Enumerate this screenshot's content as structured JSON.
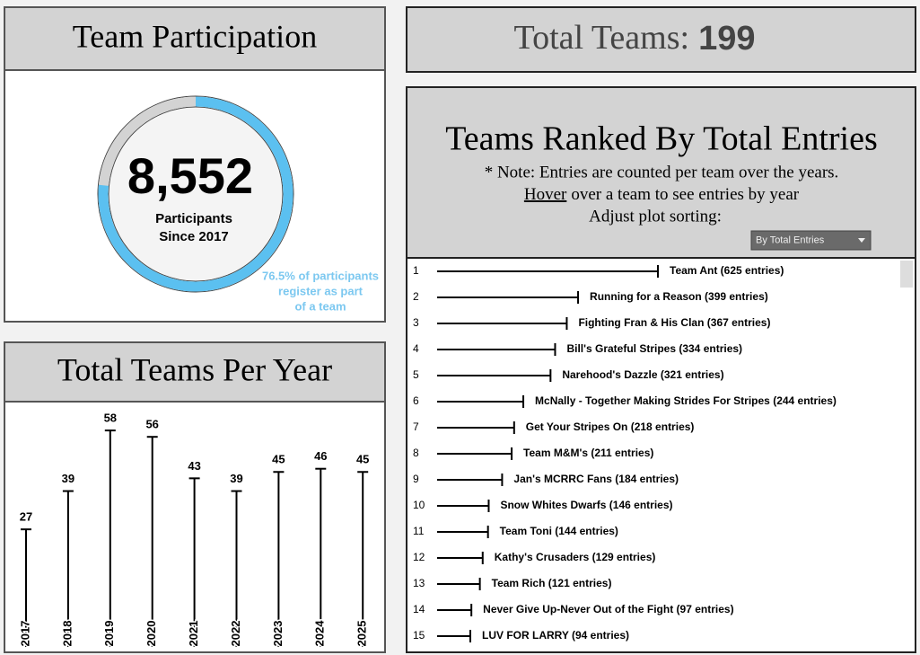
{
  "chart_data": [
    {
      "type": "donut",
      "title": "Team Participation",
      "value": 76.5,
      "colors": [
        "#5bc0f0",
        "#d3d3d3"
      ],
      "center_label": "8,552",
      "center_caption": [
        "Participants",
        "Since 2017"
      ],
      "annotation": [
        "76.5% of participants",
        "register as part",
        "of a team"
      ],
      "annotation_color": "#7cc8f0"
    },
    {
      "type": "lollipop",
      "title": "Total Teams Per Year",
      "categories": [
        "2017",
        "2018",
        "2019",
        "2020",
        "2021",
        "2022",
        "2023",
        "2024",
        "2025"
      ],
      "values": [
        27,
        39,
        58,
        56,
        43,
        39,
        45,
        46,
        45
      ],
      "color": "#000000"
    },
    {
      "type": "kpi",
      "label": "Total Teams:",
      "value": 199
    },
    {
      "type": "ranked",
      "title": "Teams Ranked By Total Entries",
      "note": "* Note: Entries are counted per team over the years.",
      "hover": "Hover",
      "hover_rest": "over a team to see entries by year",
      "sort_label": "Adjust plot sorting:",
      "sort_option": "By Total Entries",
      "ranks": [
        1,
        2,
        3,
        4,
        5,
        6,
        7,
        8,
        9,
        10,
        11,
        12,
        13,
        14,
        15
      ],
      "values": [
        625,
        399,
        367,
        334,
        321,
        244,
        218,
        211,
        184,
        146,
        144,
        129,
        121,
        97,
        94
      ],
      "value_labels": [
        "Team Ant (625 entries)",
        "Running for a Reason (399 entries)",
        "Fighting Fran & His Clan (367 entries)",
        "Bill's Grateful Stripes (334 entries)",
        "Narehood's Dazzle (321 entries)",
        "McNally - Together Making Strides For Stripes (244 entries)",
        "Get Your Stripes On (218 entries)",
        "Team M&M's (211 entries)",
        "Jan's MCRRC Fans (184 entries)",
        "Snow Whites Dwarfs (146 entries)",
        "Team Toni (144 entries)",
        "Kathy's Crusaders (129 entries)",
        "Team Rich (121 entries)",
        "Never Give Up-Never Out of the Fight (97 entries)",
        "LUV FOR LARRY (94 entries)"
      ],
      "color": "#000000"
    }
  ]
}
